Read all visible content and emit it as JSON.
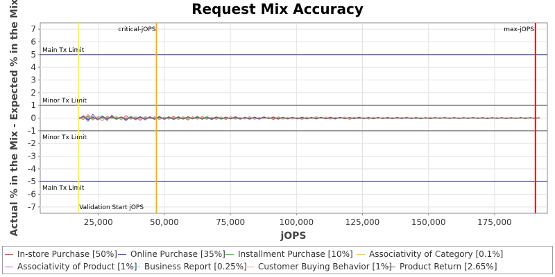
{
  "chart_data": {
    "type": "line",
    "title": "Request Mix Accuracy",
    "xlabel": "jOPS",
    "ylabel": "Actual % in the Mix - Expected % in the Mix",
    "xlim": [
      3000,
      195000
    ],
    "ylim": [
      -7.5,
      7.5
    ],
    "xticks": [
      25000,
      50000,
      75000,
      100000,
      125000,
      150000,
      175000
    ],
    "xtick_labels": [
      "25,000",
      "50,000",
      "75,000",
      "100,000",
      "125,000",
      "150,000",
      "175,000"
    ],
    "yticks": [
      7,
      6,
      5,
      4,
      3,
      2,
      1,
      0,
      -1,
      -2,
      -3,
      -4,
      -5,
      -6,
      -7
    ],
    "ytick_labels": [
      "7",
      "6",
      "5",
      "4",
      "3",
      "2",
      "1",
      "0",
      "-1",
      "-2",
      "-3",
      "-4",
      "-5",
      "-6",
      "-7"
    ],
    "grid": true,
    "legend_position": "bottom",
    "x_start": 17500,
    "x_end": 192000,
    "x_step": 1800,
    "series": [
      {
        "name": "In-store Purchase [50%]",
        "color": "#e8534e",
        "values": [
          0.05,
          -0.12,
          0.18,
          -0.08,
          0.1,
          -0.22,
          0.15,
          -0.05,
          0.08,
          -0.14,
          0.2,
          -0.1,
          0.06,
          -0.18,
          0.12,
          -0.04,
          0.1,
          -0.12,
          0.08,
          -0.06,
          0.14,
          -0.1,
          0.05,
          -0.15,
          0.1,
          -0.08,
          0.12,
          -0.05,
          0.06,
          -0.1,
          0.08,
          -0.12,
          0.1,
          -0.04,
          0.06,
          -0.08,
          0.12,
          -0.1,
          0.05,
          -0.06,
          0.08,
          -0.12,
          0.1,
          -0.05,
          0.06,
          -0.08,
          0.04,
          -0.1,
          0.08,
          -0.06,
          0.1,
          -0.04,
          0.05,
          -0.08,
          0.06,
          -0.05,
          0.08,
          -0.1,
          0.04,
          -0.06,
          0.05,
          -0.08,
          0.06,
          -0.04,
          0.05,
          -0.06,
          0.04,
          -0.05,
          0.06,
          -0.04,
          0.05,
          -0.06,
          0.04,
          -0.05,
          0.06,
          -0.04,
          0.05,
          -0.03,
          0.04,
          -0.05,
          0.03,
          -0.04,
          0.05,
          -0.03,
          0.04,
          -0.05,
          0.03,
          -0.04,
          0.05,
          -0.03,
          0.04,
          -0.05,
          0.03,
          -0.04,
          0.05,
          -0.03,
          0.04,
          -0.02
        ]
      },
      {
        "name": "Online Purchase [35%]",
        "color": "#5a57d6",
        "values": [
          -0.08,
          0.15,
          -0.25,
          0.3,
          -0.12,
          0.1,
          -0.18,
          0.22,
          -0.1,
          0.08,
          -0.2,
          0.15,
          -0.06,
          0.12,
          -0.15,
          0.1,
          -0.08,
          0.14,
          -0.12,
          0.06,
          -0.1,
          0.12,
          -0.08,
          0.1,
          -0.06,
          0.14,
          -0.1,
          0.08,
          -0.12,
          0.06,
          -0.1,
          0.08,
          -0.06,
          0.12,
          -0.08,
          0.05,
          -0.1,
          0.08,
          -0.06,
          0.1,
          -0.05,
          0.08,
          -0.1,
          0.06,
          -0.08,
          0.05,
          -0.06,
          0.08,
          -0.05,
          0.06,
          -0.08,
          0.05,
          -0.06,
          0.04,
          -0.08,
          0.06,
          -0.05,
          0.04,
          -0.06,
          0.08,
          -0.05,
          0.04,
          -0.06,
          0.05,
          -0.04,
          0.06,
          -0.05,
          0.04,
          -0.05,
          0.06,
          -0.04,
          0.05,
          -0.06,
          0.04,
          -0.05,
          0.03,
          -0.04,
          0.05,
          -0.03,
          0.04,
          -0.05,
          0.03,
          -0.04,
          0.05,
          -0.03,
          0.04,
          -0.05,
          0.03,
          -0.04,
          0.05,
          -0.03,
          0.04,
          -0.03,
          0.05,
          -0.04,
          0.03,
          -0.04,
          0.03
        ]
      },
      {
        "name": "Installment Purchase [10%]",
        "color": "#4bc94b",
        "values": [
          0.1,
          -0.05,
          0.12,
          -0.15,
          0.08,
          0.18,
          -0.1,
          0.05,
          -0.12,
          0.1,
          -0.08,
          0.14,
          -0.06,
          0.1,
          -0.12,
          0.08,
          -0.05,
          0.1,
          -0.08,
          0.12,
          -0.06,
          0.08,
          -0.1,
          0.05,
          -0.08,
          0.1,
          -0.06,
          0.12,
          -0.05,
          0.08,
          -0.1,
          0.06,
          -0.08,
          0.05,
          -0.1,
          0.08,
          -0.06,
          0.05,
          -0.08,
          0.06,
          -0.05,
          0.1,
          -0.06,
          0.08,
          -0.05,
          0.06,
          -0.08,
          0.05,
          -0.04,
          0.06,
          -0.05,
          0.08,
          -0.06,
          0.05,
          -0.04,
          0.06,
          -0.05,
          0.04,
          -0.06,
          0.05,
          -0.04,
          0.06,
          -0.05,
          0.04,
          -0.05,
          0.04,
          -0.06,
          0.05,
          -0.04,
          0.05,
          -0.04,
          0.06,
          -0.05,
          0.04,
          -0.05,
          0.04,
          -0.03,
          0.05,
          -0.04,
          0.03,
          -0.05,
          0.04,
          -0.03,
          0.05,
          -0.04,
          0.03,
          -0.04,
          0.05,
          -0.03,
          0.04,
          -0.05,
          0.03,
          -0.04,
          0.03,
          -0.05,
          0.04,
          -0.03,
          0.04
        ]
      },
      {
        "name": "Associativity of Category [0.1%]",
        "color": "#f0d232",
        "values": [
          0.02,
          -0.03,
          0.05,
          -0.02,
          0.04,
          -0.05,
          0.03,
          -0.02,
          0.04,
          -0.03,
          0.02,
          -0.04,
          0.03,
          -0.02,
          0.05,
          -0.03,
          0.02,
          -0.04,
          0.03,
          -0.02,
          0.04,
          -0.03,
          0.02,
          -0.05,
          0.03,
          -0.02,
          0.04,
          -0.03,
          0.02,
          -0.04,
          0.03,
          -0.02,
          0.04,
          -0.03,
          0.02,
          -0.03,
          0.04,
          -0.02,
          0.03,
          -0.04,
          0.02,
          -0.03,
          0.04,
          -0.02,
          0.03,
          -0.02,
          0.04,
          -0.03,
          0.02,
          -0.03,
          0.04,
          -0.02,
          0.03,
          -0.04,
          0.02,
          -0.03,
          0.02,
          -0.04,
          0.03,
          -0.02,
          0.03,
          -0.04,
          0.02,
          -0.03,
          0.02,
          -0.03,
          0.04,
          -0.02,
          0.03,
          -0.02,
          0.03,
          -0.04,
          0.02,
          -0.03,
          0.02,
          -0.03,
          0.02,
          -0.04,
          0.03,
          -0.02,
          0.03,
          -0.02,
          0.04,
          -0.03,
          0.02,
          -0.03,
          0.02,
          -0.03,
          0.04,
          -0.02,
          0.03,
          -0.02,
          0.03,
          -0.03,
          0.02,
          -0.03,
          0.02,
          -0.02
        ]
      },
      {
        "name": "Associativity of Product [1%]",
        "color": "#cc55cc",
        "values": [
          -0.1,
          0.2,
          -0.08,
          0.12,
          -0.15,
          0.05,
          -0.1,
          0.16,
          -0.06,
          0.1,
          -0.12,
          0.08,
          -0.14,
          0.06,
          -0.1,
          0.12,
          -0.05,
          0.08,
          -0.1,
          0.06,
          -0.12,
          0.05,
          -0.08,
          0.1,
          -0.06,
          0.08,
          -0.1,
          0.05,
          -0.06,
          0.1,
          -0.05,
          0.08,
          -0.06,
          0.1,
          -0.05,
          0.06,
          -0.08,
          0.05,
          -0.1,
          0.06,
          -0.04,
          0.08,
          -0.05,
          0.06,
          -0.08,
          0.04,
          -0.06,
          0.05,
          -0.08,
          0.04,
          -0.06,
          0.05,
          -0.04,
          0.08,
          -0.05,
          0.04,
          -0.06,
          0.05,
          -0.04,
          0.06,
          -0.05,
          0.04,
          -0.06,
          0.05,
          -0.04,
          0.05,
          -0.03,
          0.06,
          -0.04,
          0.05,
          -0.03,
          0.04,
          -0.05,
          0.03,
          -0.04,
          0.05,
          -0.03,
          0.04,
          -0.05,
          0.03,
          -0.04,
          0.05,
          -0.03,
          0.04,
          -0.03,
          0.05,
          -0.04,
          0.03,
          -0.04,
          0.03,
          -0.05,
          0.04,
          -0.03,
          0.04,
          -0.03,
          0.04,
          -0.03,
          0.03
        ]
      },
      {
        "name": "Business Report [0.25%]",
        "color": "#44cccc",
        "values": [
          0.04,
          -0.06,
          0.03,
          -0.05,
          0.06,
          -0.03,
          0.05,
          -0.04,
          0.03,
          -0.06,
          0.04,
          -0.03,
          0.05,
          -0.04,
          0.03,
          -0.05,
          0.04,
          -0.03,
          0.06,
          -0.04,
          0.03,
          -0.05,
          0.04,
          -0.03,
          0.05,
          -0.03,
          0.04,
          -0.05,
          0.03,
          -0.04,
          0.05,
          -0.03,
          0.04,
          -0.03,
          0.05,
          -0.04,
          0.03,
          -0.04,
          0.05,
          -0.03,
          0.04,
          -0.03,
          0.04,
          -0.05,
          0.03,
          -0.04,
          0.03,
          -0.04,
          0.05,
          -0.03,
          0.04,
          -0.03,
          0.04,
          -0.03,
          0.05,
          -0.04,
          0.03,
          -0.04,
          0.03,
          -0.04,
          0.03,
          -0.05,
          0.04,
          -0.03,
          0.04,
          -0.03,
          0.04,
          -0.03,
          0.03,
          -0.04,
          0.03,
          -0.04,
          0.03,
          -0.03,
          0.04,
          -0.03,
          0.04,
          -0.03,
          0.03,
          -0.04,
          0.03,
          -0.03,
          0.04,
          -0.03,
          0.03,
          -0.04,
          0.03,
          -0.03,
          0.03,
          -0.04,
          0.03,
          -0.03,
          0.03,
          -0.03,
          0.04,
          -0.03,
          0.03,
          -0.03
        ]
      },
      {
        "name": "Customer Buying Behavior [1%]",
        "color": "#f0a08a",
        "values": [
          0.12,
          -0.1,
          0.3,
          -0.15,
          0.08,
          -0.2,
          0.1,
          -0.06,
          0.14,
          -0.12,
          0.05,
          -0.1,
          0.16,
          -0.08,
          0.1,
          -0.05,
          0.12,
          -0.14,
          0.06,
          -0.1,
          0.08,
          -0.06,
          0.12,
          -0.08,
          0.05,
          -0.1,
          0.08,
          -0.12,
          0.06,
          -0.05,
          0.1,
          -0.08,
          0.06,
          -0.1,
          0.05,
          -0.06,
          0.1,
          -0.08,
          0.05,
          -0.06,
          0.08,
          -0.05,
          0.06,
          -0.1,
          0.05,
          -0.08,
          0.06,
          -0.04,
          0.08,
          -0.05,
          0.06,
          -0.04,
          0.08,
          -0.06,
          0.05,
          -0.04,
          0.06,
          -0.05,
          0.08,
          -0.04,
          0.05,
          -0.06,
          0.04,
          -0.05,
          0.06,
          -0.04,
          0.05,
          -0.06,
          0.04,
          -0.05,
          0.04,
          -0.06,
          0.05,
          -0.04,
          0.05,
          -0.04,
          0.06,
          -0.03,
          0.04,
          -0.05,
          0.04,
          -0.03,
          0.05,
          -0.04,
          0.03,
          -0.05,
          0.04,
          -0.03,
          0.04,
          -0.04,
          0.03,
          -0.05,
          0.04,
          -0.03,
          0.04,
          -0.03,
          0.04,
          -0.03
        ]
      },
      {
        "name": "Product Return [2.65%]",
        "color": "#555555",
        "values": [
          -0.05,
          0.1,
          -0.12,
          0.06,
          -0.08,
          0.12,
          -0.05,
          0.1,
          -0.06,
          0.08,
          -0.1,
          0.05,
          -0.08,
          0.1,
          -0.06,
          0.05,
          -0.1,
          0.08,
          -0.05,
          0.06,
          -0.08,
          0.05,
          -0.06,
          0.1,
          -0.05,
          0.06,
          -0.08,
          0.04,
          -0.06,
          0.08,
          -0.05,
          0.04,
          -0.06,
          0.05,
          -0.08,
          0.04,
          -0.05,
          0.06,
          -0.04,
          0.08,
          -0.05,
          0.04,
          -0.06,
          0.05,
          -0.04,
          0.06,
          -0.05,
          0.04,
          -0.06,
          0.05,
          -0.04,
          0.05,
          -0.06,
          0.04,
          -0.05,
          0.06,
          -0.04,
          0.05,
          -0.03,
          0.04,
          -0.05,
          0.04,
          -0.03,
          0.05,
          -0.04,
          0.03,
          -0.05,
          0.04,
          -0.03,
          0.04,
          -0.05,
          0.03,
          -0.04,
          0.03,
          -0.05,
          0.04,
          -0.03,
          0.04,
          -0.03,
          0.05,
          -0.04,
          0.03,
          -0.04,
          0.03,
          -0.04,
          0.03,
          -0.05,
          0.04,
          -0.03,
          0.03,
          -0.04,
          0.03,
          -0.03,
          0.04,
          -0.03,
          0.03,
          -0.03,
          0.03
        ]
      }
    ],
    "reference_lines": [
      {
        "axis": "y",
        "value": 5,
        "label": "Main Tx Limit",
        "color": "#1a237e"
      },
      {
        "axis": "y",
        "value": 1,
        "label": "Minor Tx Limit",
        "color": "#555555"
      },
      {
        "axis": "y",
        "value": -1,
        "label": "Minor Tx Limit",
        "color": "#555555"
      },
      {
        "axis": "y",
        "value": -5,
        "label": "Main Tx Limit",
        "color": "#1a237e"
      },
      {
        "axis": "x",
        "value": 17500,
        "label": "Validation Start jOPS",
        "color": "#ffff33"
      },
      {
        "axis": "x",
        "value": 47000,
        "label": "critical-jOPS",
        "color": "#ffb000"
      },
      {
        "axis": "x",
        "value": 190500,
        "label": "max-jOPS",
        "color": "#ee1111"
      }
    ]
  }
}
